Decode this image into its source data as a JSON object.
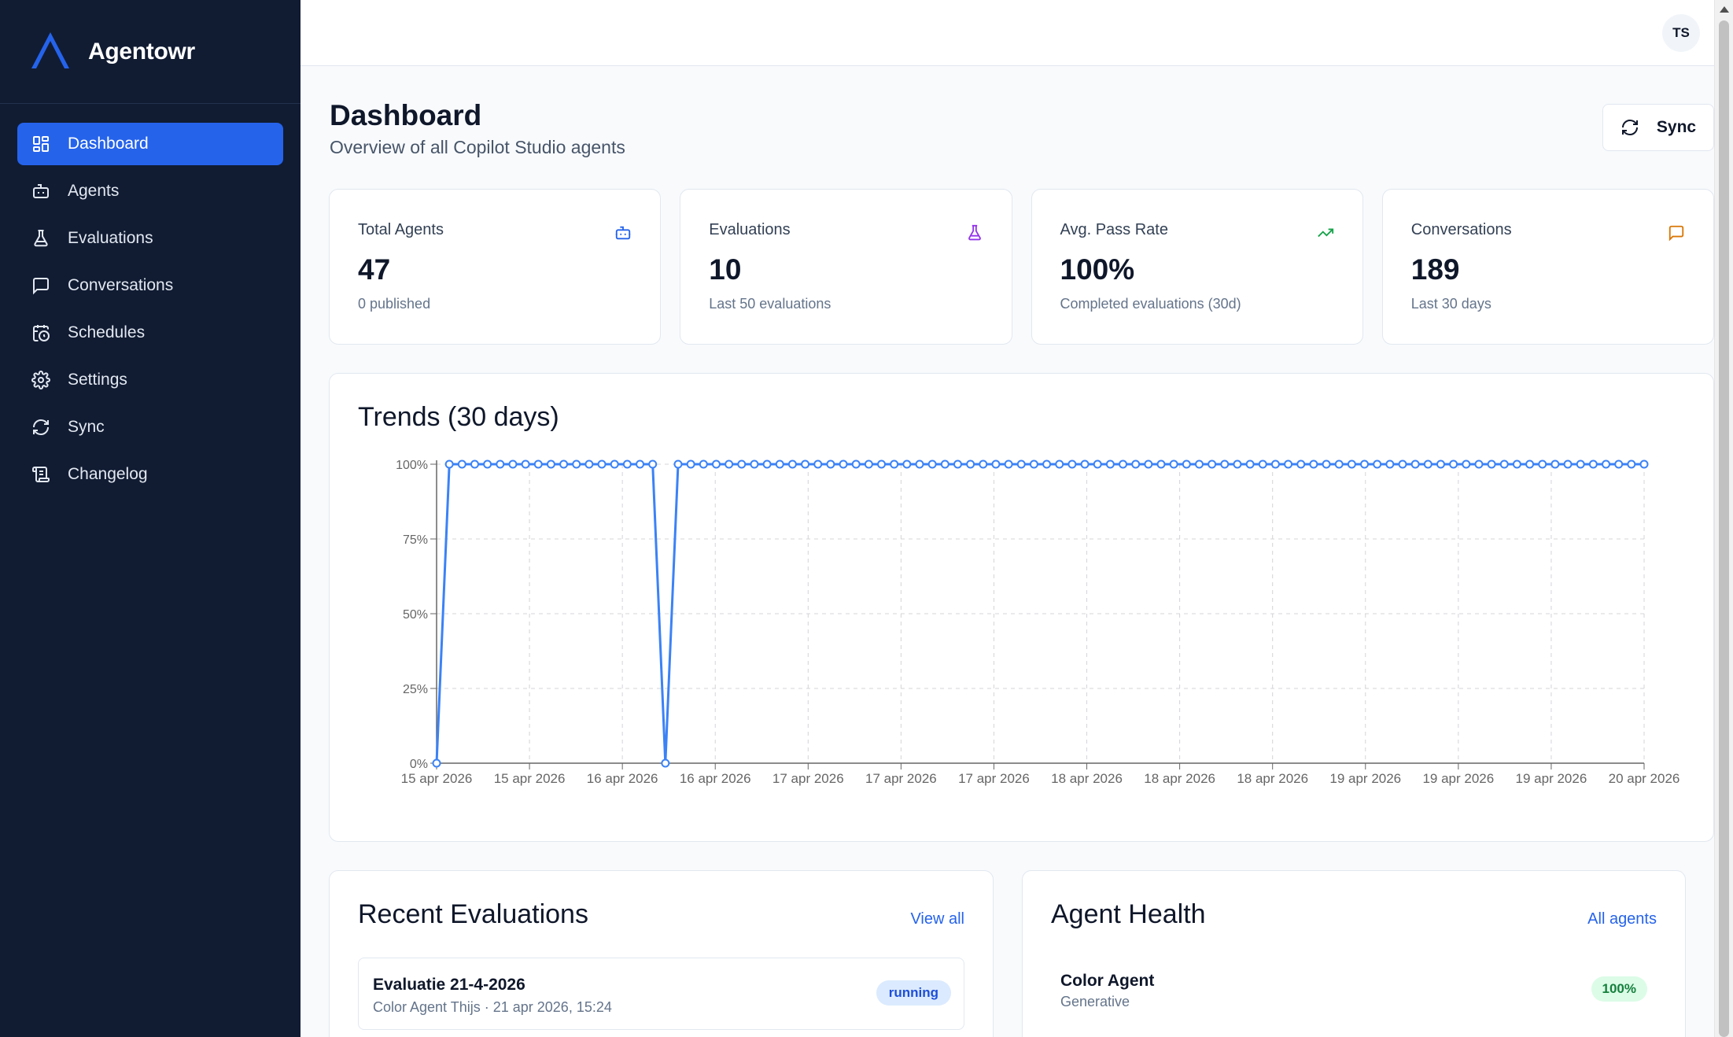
{
  "app": {
    "name": "Agentowr"
  },
  "sidebar": {
    "items": [
      {
        "label": "Dashboard",
        "icon": "dashboard-icon",
        "active": true
      },
      {
        "label": "Agents",
        "icon": "bot-icon"
      },
      {
        "label": "Evaluations",
        "icon": "flask-icon"
      },
      {
        "label": "Conversations",
        "icon": "message-icon"
      },
      {
        "label": "Schedules",
        "icon": "calendar-clock-icon"
      },
      {
        "label": "Settings",
        "icon": "gear-icon"
      },
      {
        "label": "Sync",
        "icon": "refresh-icon"
      },
      {
        "label": "Changelog",
        "icon": "scroll-icon"
      }
    ]
  },
  "user": {
    "initials": "TS"
  },
  "header": {
    "title": "Dashboard",
    "subtitle": "Overview of all Copilot Studio agents",
    "sync_label": "Sync"
  },
  "stats": [
    {
      "label": "Total Agents",
      "value": "47",
      "sub": "0 published",
      "icon": "bot-icon",
      "color": "#2563eb"
    },
    {
      "label": "Evaluations",
      "value": "10",
      "sub": "Last 50 evaluations",
      "icon": "flask-icon",
      "color": "#9333ea"
    },
    {
      "label": "Avg. Pass Rate",
      "value": "100%",
      "sub": "Completed evaluations (30d)",
      "icon": "trending-up-icon",
      "color": "#16a34a"
    },
    {
      "label": "Conversations",
      "value": "189",
      "sub": "Last 30 days",
      "icon": "message-icon",
      "color": "#d97706"
    }
  ],
  "trends": {
    "title": "Trends (30 days)"
  },
  "chart_data": {
    "type": "line",
    "title": "Trends (30 days)",
    "xlabel": "",
    "ylabel": "",
    "ylim": [
      0,
      100
    ],
    "yticks": [
      "0%",
      "25%",
      "50%",
      "75%",
      "100%"
    ],
    "xticks": [
      "15 apr 2026",
      "15 apr 2026",
      "16 apr 2026",
      "16 apr 2026",
      "17 apr 2026",
      "17 apr 2026",
      "17 apr 2026",
      "18 apr 2026",
      "18 apr 2026",
      "18 apr 2026",
      "19 apr 2026",
      "19 apr 2026",
      "19 apr 2026",
      "20 apr 2026"
    ],
    "grid": true,
    "color": "#3b82f6",
    "series": [
      {
        "values": [
          0,
          100,
          100,
          100,
          100,
          100,
          100,
          100,
          100,
          100,
          100,
          100,
          100,
          100,
          100,
          100,
          100,
          100,
          0,
          100,
          100,
          100,
          100,
          100,
          100,
          100,
          100,
          100,
          100,
          100,
          100,
          100,
          100,
          100,
          100,
          100,
          100,
          100,
          100,
          100,
          100,
          100,
          100,
          100,
          100,
          100,
          100,
          100,
          100,
          100,
          100,
          100,
          100,
          100,
          100,
          100,
          100,
          100,
          100,
          100,
          100,
          100,
          100,
          100,
          100,
          100,
          100,
          100,
          100,
          100,
          100,
          100,
          100,
          100,
          100,
          100,
          100,
          100,
          100,
          100,
          100,
          100,
          100,
          100,
          100,
          100,
          100,
          100,
          100,
          100,
          100,
          100,
          100,
          100,
          100,
          100
        ]
      }
    ]
  },
  "recent": {
    "title": "Recent Evaluations",
    "link": "View all",
    "items": [
      {
        "name": "Evaluatie 21-4-2026",
        "meta": "Color Agent Thijs · 21 apr 2026, 15:24",
        "status": "running"
      }
    ]
  },
  "health": {
    "title": "Agent Health",
    "link": "All agents",
    "items": [
      {
        "name": "Color Agent",
        "type": "Generative",
        "rate": "100%"
      }
    ]
  }
}
